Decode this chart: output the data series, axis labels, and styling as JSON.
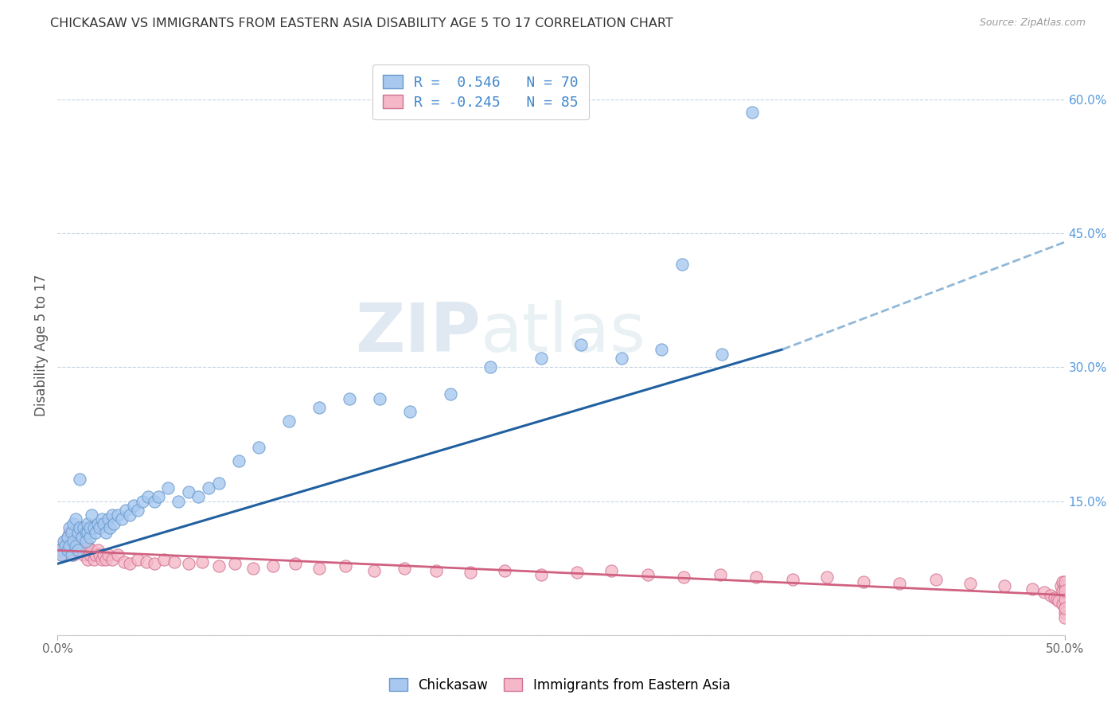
{
  "title": "CHICKASAW VS IMMIGRANTS FROM EASTERN ASIA DISABILITY AGE 5 TO 17 CORRELATION CHART",
  "source": "Source: ZipAtlas.com",
  "ylabel": "Disability Age 5 to 17",
  "x_min": 0.0,
  "x_max": 0.5,
  "y_min": 0.0,
  "y_max": 0.65,
  "x_tick_positions": [
    0.0,
    0.5
  ],
  "x_tick_labels": [
    "0.0%",
    "50.0%"
  ],
  "y_ticks_right": [
    0.0,
    0.15,
    0.3,
    0.45,
    0.6
  ],
  "y_tick_labels_right": [
    "",
    "15.0%",
    "30.0%",
    "45.0%",
    "60.0%"
  ],
  "chickasaw_color": "#a8c8f0",
  "chickasaw_edge_color": "#6699cc",
  "immigrants_color": "#f5b8c8",
  "immigrants_edge_color": "#d07090",
  "chickasaw_line_color": "#2060a0",
  "immigrants_line_color": "#d06080",
  "trend_extension_color": "#90b8d8",
  "R_chickasaw": 0.546,
  "N_chickasaw": 70,
  "R_immigrants": -0.245,
  "N_immigrants": 85,
  "legend_label_chickasaw": "Chickasaw",
  "legend_label_immigrants": "Immigrants from Eastern Asia",
  "watermark_zip": "ZIP",
  "watermark_atlas": "atlas",
  "background_color": "#ffffff",
  "grid_color": "#c8d4e4",
  "chickasaw_scatter_x": [
    0.001,
    0.002,
    0.003,
    0.004,
    0.005,
    0.005,
    0.006,
    0.006,
    0.007,
    0.007,
    0.008,
    0.008,
    0.009,
    0.009,
    0.01,
    0.01,
    0.011,
    0.011,
    0.012,
    0.013,
    0.014,
    0.014,
    0.015,
    0.015,
    0.016,
    0.016,
    0.017,
    0.018,
    0.019,
    0.02,
    0.021,
    0.022,
    0.023,
    0.024,
    0.025,
    0.026,
    0.027,
    0.028,
    0.03,
    0.032,
    0.034,
    0.036,
    0.038,
    0.04,
    0.042,
    0.045,
    0.048,
    0.05,
    0.055,
    0.06,
    0.065,
    0.07,
    0.075,
    0.08,
    0.09,
    0.1,
    0.115,
    0.13,
    0.145,
    0.16,
    0.175,
    0.195,
    0.215,
    0.24,
    0.26,
    0.28,
    0.3,
    0.31,
    0.33,
    0.345
  ],
  "chickasaw_scatter_y": [
    0.095,
    0.09,
    0.105,
    0.1,
    0.11,
    0.095,
    0.12,
    0.1,
    0.115,
    0.09,
    0.125,
    0.105,
    0.1,
    0.13,
    0.115,
    0.095,
    0.12,
    0.175,
    0.11,
    0.12,
    0.115,
    0.105,
    0.115,
    0.125,
    0.11,
    0.12,
    0.135,
    0.12,
    0.115,
    0.125,
    0.12,
    0.13,
    0.125,
    0.115,
    0.13,
    0.12,
    0.135,
    0.125,
    0.135,
    0.13,
    0.14,
    0.135,
    0.145,
    0.14,
    0.15,
    0.155,
    0.15,
    0.155,
    0.165,
    0.15,
    0.16,
    0.155,
    0.165,
    0.17,
    0.195,
    0.21,
    0.24,
    0.255,
    0.265,
    0.265,
    0.25,
    0.27,
    0.3,
    0.31,
    0.325,
    0.31,
    0.32,
    0.415,
    0.315,
    0.585
  ],
  "immigrants_scatter_x": [
    0.001,
    0.002,
    0.003,
    0.004,
    0.005,
    0.005,
    0.006,
    0.006,
    0.007,
    0.007,
    0.008,
    0.008,
    0.009,
    0.01,
    0.011,
    0.012,
    0.013,
    0.014,
    0.015,
    0.015,
    0.016,
    0.017,
    0.018,
    0.019,
    0.02,
    0.021,
    0.022,
    0.023,
    0.024,
    0.025,
    0.027,
    0.03,
    0.033,
    0.036,
    0.04,
    0.044,
    0.048,
    0.053,
    0.058,
    0.065,
    0.072,
    0.08,
    0.088,
    0.097,
    0.107,
    0.118,
    0.13,
    0.143,
    0.157,
    0.172,
    0.188,
    0.205,
    0.222,
    0.24,
    0.258,
    0.275,
    0.293,
    0.311,
    0.329,
    0.347,
    0.365,
    0.382,
    0.4,
    0.418,
    0.436,
    0.453,
    0.47,
    0.484,
    0.49,
    0.493,
    0.495,
    0.496,
    0.497,
    0.498,
    0.499,
    0.499,
    0.499,
    0.5,
    0.5,
    0.5,
    0.5,
    0.5,
    0.5,
    0.5,
    0.5
  ],
  "immigrants_scatter_y": [
    0.095,
    0.09,
    0.1,
    0.105,
    0.095,
    0.11,
    0.1,
    0.115,
    0.095,
    0.115,
    0.09,
    0.105,
    0.095,
    0.1,
    0.095,
    0.1,
    0.09,
    0.095,
    0.085,
    0.1,
    0.09,
    0.095,
    0.085,
    0.09,
    0.095,
    0.09,
    0.085,
    0.09,
    0.085,
    0.09,
    0.085,
    0.09,
    0.082,
    0.08,
    0.085,
    0.082,
    0.08,
    0.085,
    0.082,
    0.08,
    0.082,
    0.078,
    0.08,
    0.075,
    0.078,
    0.08,
    0.075,
    0.078,
    0.072,
    0.075,
    0.072,
    0.07,
    0.072,
    0.068,
    0.07,
    0.072,
    0.068,
    0.065,
    0.068,
    0.065,
    0.062,
    0.065,
    0.06,
    0.058,
    0.062,
    0.058,
    0.055,
    0.052,
    0.048,
    0.045,
    0.042,
    0.04,
    0.038,
    0.055,
    0.035,
    0.06,
    0.05,
    0.03,
    0.025,
    0.055,
    0.04,
    0.02,
    0.06,
    0.03,
    0.05
  ],
  "chickasaw_line_start_x": 0.0,
  "chickasaw_line_start_y": 0.08,
  "chickasaw_line_end_solid_x": 0.36,
  "chickasaw_line_end_y": 0.32,
  "chickasaw_line_end_dashed_x": 0.5,
  "chickasaw_line_end_dashed_y": 0.44,
  "immigrants_line_start_x": 0.0,
  "immigrants_line_start_y": 0.095,
  "immigrants_line_end_x": 0.5,
  "immigrants_line_end_y": 0.045
}
